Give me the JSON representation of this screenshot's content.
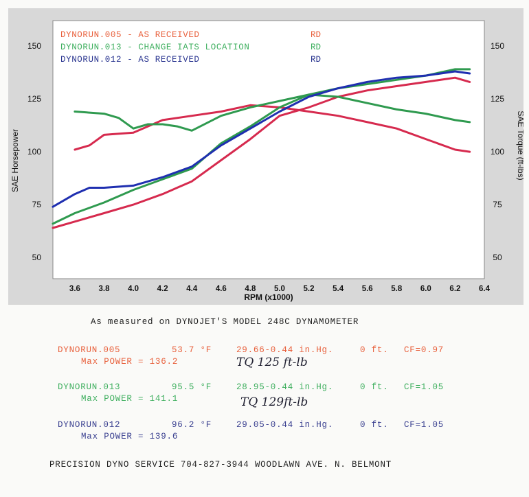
{
  "chart_data": {
    "type": "line",
    "xlabel": "RPM (x1000)",
    "ylabel_left": "SAE Horsepower",
    "ylabel_right": "SAE Torque (ft-lbs)",
    "xlim": [
      3.45,
      6.4
    ],
    "ylim": [
      40,
      162
    ],
    "x_ticks": [
      "3.6",
      "3.8",
      "4.0",
      "4.2",
      "4.4",
      "4.6",
      "4.8",
      "5.0",
      "5.2",
      "5.4",
      "5.6",
      "5.8",
      "6.0",
      "6.2",
      "6.4"
    ],
    "y_ticks_left": [
      "50",
      "75",
      "100",
      "125",
      "150"
    ],
    "y_ticks_right": [
      "50",
      "75",
      "100",
      "125",
      "150"
    ],
    "legend": [
      {
        "name": "DYNORUN.005 - AS RECEIVED",
        "tag": "RD",
        "color": "#e8603c"
      },
      {
        "name": "DYNORUN.013 -  CHANGE IATS LOCATION",
        "tag": "RD",
        "color": "#3faf5f"
      },
      {
        "name": "DYNORUN.012 - AS RECEIVED",
        "tag": "RD",
        "color": "#2a3590"
      }
    ],
    "series": [
      {
        "name": "DYNORUN.005 HP",
        "kind": "power",
        "color": "#d62a4e",
        "x": [
          3.45,
          3.6,
          3.8,
          4.0,
          4.2,
          4.4,
          4.6,
          4.8,
          5.0,
          5.2,
          5.4,
          5.6,
          5.8,
          6.0,
          6.2,
          6.3
        ],
        "values": [
          64,
          67,
          71,
          75,
          80,
          86,
          96,
          106,
          117,
          121,
          126,
          129,
          131,
          133,
          135,
          133
        ]
      },
      {
        "name": "DYNORUN.005 TQ",
        "kind": "torque",
        "color": "#d62a4e",
        "x": [
          3.6,
          3.7,
          3.8,
          4.0,
          4.2,
          4.4,
          4.6,
          4.8,
          5.0,
          5.2,
          5.4,
          5.6,
          5.8,
          6.0,
          6.2,
          6.3
        ],
        "values": [
          101,
          103,
          108,
          109,
          115,
          117,
          119,
          122,
          121,
          119,
          117,
          114,
          111,
          106,
          101,
          100
        ]
      },
      {
        "name": "DYNORUN.013 HP",
        "kind": "power",
        "color": "#2f9a4f",
        "x": [
          3.45,
          3.6,
          3.8,
          4.0,
          4.2,
          4.4,
          4.6,
          4.8,
          5.0,
          5.2,
          5.4,
          5.6,
          5.8,
          6.0,
          6.2,
          6.3
        ],
        "values": [
          66,
          71,
          76,
          82,
          87,
          92,
          104,
          112,
          121,
          127,
          130,
          132,
          134,
          136,
          139,
          139
        ]
      },
      {
        "name": "DYNORUN.013 TQ",
        "kind": "torque",
        "color": "#2f9a4f",
        "x": [
          3.6,
          3.8,
          3.9,
          4.0,
          4.1,
          4.2,
          4.3,
          4.4,
          4.6,
          4.8,
          5.0,
          5.2,
          5.4,
          5.6,
          5.8,
          6.0,
          6.2,
          6.3
        ],
        "values": [
          119,
          118,
          116,
          111,
          113,
          113,
          112,
          110,
          117,
          121,
          124,
          127,
          126,
          123,
          120,
          118,
          115,
          114
        ]
      },
      {
        "name": "DYNORUN.012 HP",
        "kind": "power",
        "color": "#1f2fb0",
        "x": [
          3.45,
          3.6,
          3.7,
          3.8,
          4.0,
          4.2,
          4.4,
          4.6,
          4.8,
          5.0,
          5.2,
          5.4,
          5.6,
          5.8,
          6.0,
          6.2,
          6.3
        ],
        "values": [
          74,
          80,
          83,
          83,
          84,
          88,
          93,
          103,
          111,
          119,
          126,
          130,
          133,
          135,
          136,
          138,
          137
        ]
      }
    ]
  },
  "footer": {
    "heading": "As measured on DYNOJET'S MODEL 248C DYNAMOMETER",
    "runs": [
      {
        "name": "DYNORUN.005",
        "temp": "53.7 °F",
        "baro": "29.66-0.44 in.Hg.",
        "alt": "0 ft.",
        "cf": "CF=0.97",
        "max_power": "Max POWER = 136.2",
        "note": "TQ 125 ft-lb",
        "color": "#e8603c"
      },
      {
        "name": "DYNORUN.013",
        "temp": "95.5 °F",
        "baro": "28.95-0.44 in.Hg.",
        "alt": "0 ft.",
        "cf": "CF=1.05",
        "max_power": "Max POWER = 141.1",
        "note": "TQ 129ft-lb",
        "color": "#3faf5f"
      },
      {
        "name": "DYNORUN.012",
        "temp": "96.2 °F",
        "baro": "29.05-0.44 in.Hg.",
        "alt": "0 ft.",
        "cf": "CF=1.05",
        "max_power": "Max POWER = 139.6",
        "note": "",
        "color": "#3a4090"
      }
    ],
    "company": "PRECISION DYNO SERVICE 704-827-3944 WOODLAWN AVE. N. BELMONT"
  }
}
